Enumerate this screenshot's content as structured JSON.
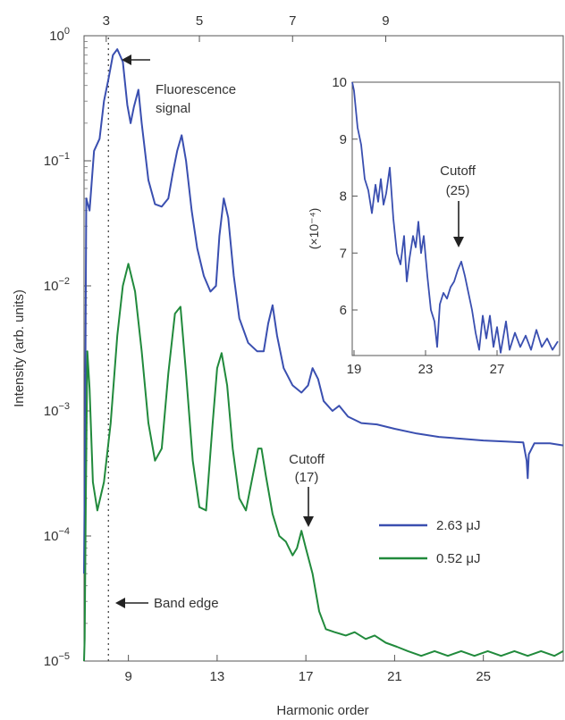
{
  "chart_data": [
    {
      "type": "line",
      "xlabel": "Harmonic order",
      "ylabel": "Intensity (arb. units)",
      "yscale": "log",
      "xlim": [
        7.0,
        28.6
      ],
      "ylim": [
        1e-05,
        1
      ],
      "x_ticks": [
        "9",
        "13",
        "17",
        "21",
        "25"
      ],
      "x_ticks_top": [
        "3",
        "5",
        "7",
        "9"
      ],
      "y_ticks": [
        {
          "base": "10",
          "exp": "0"
        },
        {
          "base": "10",
          "exp": "−1"
        },
        {
          "base": "10",
          "exp": "−2"
        },
        {
          "base": "10",
          "exp": "−3"
        },
        {
          "base": "10",
          "exp": "−4"
        },
        {
          "base": "10",
          "exp": "−5"
        }
      ],
      "legend": {
        "position": "bottom-right"
      },
      "series": [
        {
          "name": "2.63 μJ",
          "color": "#3a4fb0",
          "points": [
            [
              7.0,
              5e-05
            ],
            [
              7.05,
              0.0008
            ],
            [
              7.1,
              0.05
            ],
            [
              7.25,
              0.04
            ],
            [
              7.45,
              0.12
            ],
            [
              7.7,
              0.15
            ],
            [
              7.9,
              0.3
            ],
            [
              8.1,
              0.45
            ],
            [
              8.3,
              0.7
            ],
            [
              8.5,
              0.78
            ],
            [
              8.75,
              0.62
            ],
            [
              8.95,
              0.28
            ],
            [
              9.1,
              0.2
            ],
            [
              9.25,
              0.27
            ],
            [
              9.45,
              0.37
            ],
            [
              9.6,
              0.2
            ],
            [
              9.9,
              0.07
            ],
            [
              10.2,
              0.045
            ],
            [
              10.5,
              0.043
            ],
            [
              10.8,
              0.05
            ],
            [
              11.0,
              0.08
            ],
            [
              11.2,
              0.12
            ],
            [
              11.4,
              0.16
            ],
            [
              11.6,
              0.1
            ],
            [
              11.85,
              0.04
            ],
            [
              12.1,
              0.02
            ],
            [
              12.4,
              0.012
            ],
            [
              12.7,
              0.009
            ],
            [
              12.95,
              0.01
            ],
            [
              13.1,
              0.025
            ],
            [
              13.3,
              0.05
            ],
            [
              13.5,
              0.035
            ],
            [
              13.75,
              0.012
            ],
            [
              14.0,
              0.0055
            ],
            [
              14.4,
              0.0035
            ],
            [
              14.8,
              0.003
            ],
            [
              15.1,
              0.003
            ],
            [
              15.3,
              0.005
            ],
            [
              15.5,
              0.007
            ],
            [
              15.7,
              0.004
            ],
            [
              16.0,
              0.0022
            ],
            [
              16.4,
              0.0016
            ],
            [
              16.8,
              0.0014
            ],
            [
              17.1,
              0.0016
            ],
            [
              17.3,
              0.0022
            ],
            [
              17.55,
              0.0018
            ],
            [
              17.8,
              0.0012
            ],
            [
              18.2,
              0.001
            ],
            [
              18.5,
              0.0011
            ],
            [
              18.9,
              0.0009
            ],
            [
              19.5,
              0.0008
            ],
            [
              20.2,
              0.00078
            ],
            [
              21,
              0.00072
            ],
            [
              22,
              0.00066
            ],
            [
              23,
              0.00062
            ],
            [
              24,
              0.0006
            ],
            [
              25,
              0.00058
            ],
            [
              26,
              0.00057
            ],
            [
              26.8,
              0.00056
            ],
            [
              26.95,
              0.0004
            ],
            [
              27.0,
              0.00029
            ],
            [
              27.05,
              0.00045
            ],
            [
              27.3,
              0.00055
            ],
            [
              28,
              0.00055
            ],
            [
              28.6,
              0.00053
            ]
          ]
        },
        {
          "name": "0.52 μJ",
          "color": "#218a3c",
          "points": [
            [
              7.0,
              1e-05
            ],
            [
              7.03,
              1.5e-05
            ],
            [
              7.08,
              0.0002
            ],
            [
              7.15,
              0.003
            ],
            [
              7.25,
              0.0015
            ],
            [
              7.4,
              0.00027
            ],
            [
              7.6,
              0.00016
            ],
            [
              7.9,
              0.00027
            ],
            [
              8.2,
              0.0008
            ],
            [
              8.5,
              0.004
            ],
            [
              8.75,
              0.01
            ],
            [
              9.0,
              0.015
            ],
            [
              9.3,
              0.009
            ],
            [
              9.6,
              0.003
            ],
            [
              9.9,
              0.0008
            ],
            [
              10.2,
              0.0004
            ],
            [
              10.5,
              0.0005
            ],
            [
              10.8,
              0.002
            ],
            [
              11.1,
              0.006
            ],
            [
              11.35,
              0.0068
            ],
            [
              11.6,
              0.002
            ],
            [
              11.9,
              0.0004
            ],
            [
              12.2,
              0.00017
            ],
            [
              12.5,
              0.00016
            ],
            [
              12.8,
              0.0008
            ],
            [
              13.0,
              0.0022
            ],
            [
              13.2,
              0.0029
            ],
            [
              13.45,
              0.0016
            ],
            [
              13.7,
              0.0005
            ],
            [
              14.0,
              0.0002
            ],
            [
              14.3,
              0.00016
            ],
            [
              14.6,
              0.0003
            ],
            [
              14.85,
              0.0005
            ],
            [
              15.0,
              0.0005
            ],
            [
              15.2,
              0.0003
            ],
            [
              15.5,
              0.00015
            ],
            [
              15.8,
              0.0001
            ],
            [
              16.1,
              9e-05
            ],
            [
              16.4,
              7e-05
            ],
            [
              16.6,
              8e-05
            ],
            [
              16.8,
              0.00011
            ],
            [
              17.0,
              8e-05
            ],
            [
              17.3,
              5e-05
            ],
            [
              17.6,
              2.5e-05
            ],
            [
              17.9,
              1.8e-05
            ],
            [
              18.3,
              1.7e-05
            ],
            [
              18.8,
              1.6e-05
            ],
            [
              19.2,
              1.7e-05
            ],
            [
              19.7,
              1.5e-05
            ],
            [
              20.1,
              1.6e-05
            ],
            [
              20.6,
              1.4e-05
            ],
            [
              21.1,
              1.3e-05
            ],
            [
              21.6,
              1.2e-05
            ],
            [
              22.2,
              1.1e-05
            ],
            [
              22.8,
              1.2e-05
            ],
            [
              23.4,
              1.1e-05
            ],
            [
              24.0,
              1.2e-05
            ],
            [
              24.6,
              1.1e-05
            ],
            [
              25.2,
              1.2e-05
            ],
            [
              25.8,
              1.1e-05
            ],
            [
              26.4,
              1.2e-05
            ],
            [
              27.0,
              1.1e-05
            ],
            [
              27.6,
              1.2e-05
            ],
            [
              28.2,
              1.1e-05
            ],
            [
              28.6,
              1.2e-05
            ]
          ]
        }
      ],
      "annotations": {
        "fluorescence": [
          "Fluorescence",
          "signal"
        ],
        "band_edge": "Band edge",
        "band_edge_x": 8.1,
        "cutoff_label": "Cutoff",
        "cutoff_order": "(17)",
        "cutoff_x": 17.0
      }
    },
    {
      "type": "line",
      "inset": true,
      "ylabel": "(×10⁻⁴)",
      "xlim": [
        18.9,
        30.5
      ],
      "ylim": [
        5.2,
        10
      ],
      "x_ticks": [
        "19",
        "23",
        "27"
      ],
      "y_ticks": [
        "10",
        "9",
        "8",
        "7",
        "6"
      ],
      "series": [
        {
          "color": "#3a4fb0",
          "points": [
            [
              18.9,
              10
            ],
            [
              19.0,
              9.85
            ],
            [
              19.2,
              9.2
            ],
            [
              19.4,
              8.9
            ],
            [
              19.6,
              8.3
            ],
            [
              19.8,
              8.1
            ],
            [
              20.0,
              7.7
            ],
            [
              20.2,
              8.2
            ],
            [
              20.35,
              7.9
            ],
            [
              20.5,
              8.3
            ],
            [
              20.65,
              7.85
            ],
            [
              20.8,
              8.05
            ],
            [
              21.0,
              8.5
            ],
            [
              21.2,
              7.6
            ],
            [
              21.4,
              7.0
            ],
            [
              21.6,
              6.8
            ],
            [
              21.8,
              7.3
            ],
            [
              21.95,
              6.5
            ],
            [
              22.1,
              6.9
            ],
            [
              22.3,
              7.3
            ],
            [
              22.45,
              7.1
            ],
            [
              22.6,
              7.55
            ],
            [
              22.75,
              7.0
            ],
            [
              22.9,
              7.3
            ],
            [
              23.1,
              6.6
            ],
            [
              23.3,
              6.0
            ],
            [
              23.5,
              5.8
            ],
            [
              23.65,
              5.35
            ],
            [
              23.8,
              6.1
            ],
            [
              24.0,
              6.3
            ],
            [
              24.2,
              6.2
            ],
            [
              24.4,
              6.4
            ],
            [
              24.6,
              6.5
            ],
            [
              24.8,
              6.7
            ],
            [
              25.0,
              6.85
            ],
            [
              25.2,
              6.6
            ],
            [
              25.4,
              6.3
            ],
            [
              25.6,
              6.0
            ],
            [
              25.8,
              5.6
            ],
            [
              26.0,
              5.3
            ],
            [
              26.2,
              5.9
            ],
            [
              26.4,
              5.5
            ],
            [
              26.6,
              5.9
            ],
            [
              26.8,
              5.35
            ],
            [
              27.0,
              5.7
            ],
            [
              27.2,
              5.25
            ],
            [
              27.5,
              5.8
            ],
            [
              27.7,
              5.3
            ],
            [
              28.0,
              5.6
            ],
            [
              28.3,
              5.35
            ],
            [
              28.6,
              5.55
            ],
            [
              28.9,
              5.3
            ],
            [
              29.2,
              5.65
            ],
            [
              29.5,
              5.35
            ],
            [
              29.8,
              5.5
            ],
            [
              30.1,
              5.3
            ],
            [
              30.4,
              5.45
            ]
          ]
        }
      ],
      "annotations": {
        "cutoff_label": "Cutoff",
        "cutoff_order": "(25)",
        "cutoff_x": 25.0
      }
    }
  ]
}
